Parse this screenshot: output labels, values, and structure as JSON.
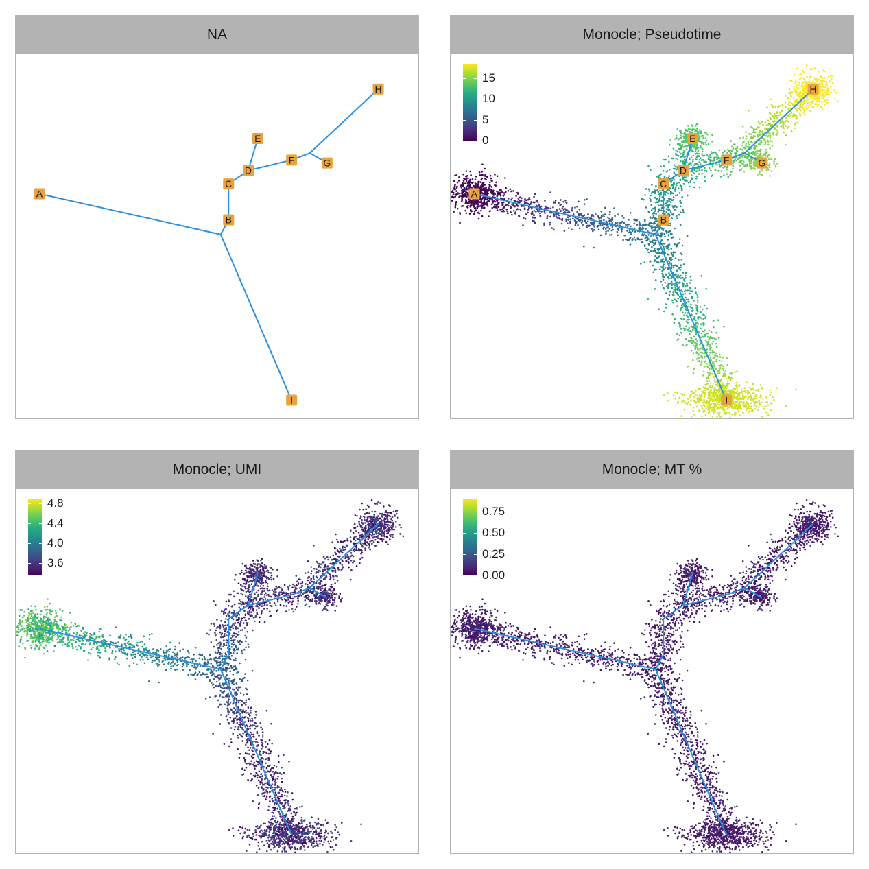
{
  "panels": [
    {
      "title": "NA",
      "color_by": "none",
      "legend": null
    },
    {
      "title": "Monocle; Pseudotime",
      "color_by": "pseudotime",
      "legend": {
        "min": 0,
        "max": 18.5,
        "ticks": [
          "0",
          "5",
          "10",
          "15"
        ],
        "tick_values": [
          0,
          5,
          10,
          15
        ]
      }
    },
    {
      "title": "Monocle; UMI",
      "color_by": "umi",
      "legend": {
        "min": 3.35,
        "max": 4.9,
        "ticks": [
          "3.6",
          "4.0",
          "4.4",
          "4.8"
        ],
        "tick_values": [
          3.6,
          4.0,
          4.4,
          4.8
        ]
      }
    },
    {
      "title": "Monocle; MT %",
      "color_by": "mt",
      "legend": {
        "min": 0,
        "max": 0.9,
        "ticks": [
          "0.00",
          "0.25",
          "0.50",
          "0.75"
        ],
        "tick_values": [
          0,
          0.25,
          0.5,
          0.75
        ]
      }
    }
  ],
  "colors": {
    "tree_edge": "#2a8fe0",
    "node_fill": "#e8a33d",
    "strip": "#b3b3b3",
    "palette": "viridis"
  },
  "chart_data": {
    "type": "scatter",
    "nodes": [
      {
        "label": "A",
        "x": -2.7,
        "y": 0.8
      },
      {
        "label": "B",
        "x": -0.3,
        "y": 0.35
      },
      {
        "label": "C",
        "x": -0.3,
        "y": 0.97
      },
      {
        "label": "D",
        "x": -0.05,
        "y": 1.2
      },
      {
        "label": "E",
        "x": 0.07,
        "y": 1.75
      },
      {
        "label": "F",
        "x": 0.5,
        "y": 1.38
      },
      {
        "label": "G",
        "x": 0.95,
        "y": 1.33
      },
      {
        "label": "H",
        "x": 1.6,
        "y": 2.6
      },
      {
        "label": "I",
        "x": 0.5,
        "y": -2.75
      }
    ],
    "edges": [
      [
        "A",
        "J1"
      ],
      [
        "J1",
        "B"
      ],
      [
        "J1",
        "I"
      ],
      [
        "B",
        "C"
      ],
      [
        "C",
        "D"
      ],
      [
        "D",
        "E"
      ],
      [
        "D",
        "F"
      ],
      [
        "F",
        "J2"
      ],
      [
        "J2",
        "G"
      ],
      [
        "J2",
        "H"
      ]
    ],
    "junctions": [
      {
        "id": "J1",
        "x": -0.4,
        "y": 0.1
      },
      {
        "id": "J2",
        "x": 0.73,
        "y": 1.5
      }
    ]
  }
}
